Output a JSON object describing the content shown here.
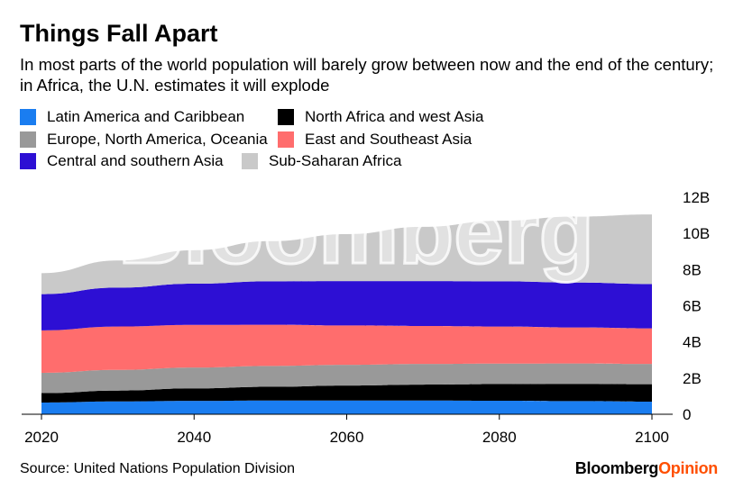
{
  "title": "Things Fall Apart",
  "subtitle": "In most parts of the world population will barely grow between now and the end of the century; in Africa, the U.N. estimates it will explode",
  "source": "Source: United Nations Population Division",
  "brand": {
    "part1": "Bloomberg",
    "part2": "Opinion",
    "accent": "#ff4f00"
  },
  "watermark": "Bloomberg",
  "chart_data": {
    "type": "area",
    "stacked": true,
    "x": [
      2020,
      2030,
      2040,
      2050,
      2060,
      2070,
      2080,
      2090,
      2100
    ],
    "xlim": [
      2020,
      2100
    ],
    "ylim": [
      0,
      12
    ],
    "x_ticks": [
      "2020",
      "2040",
      "2060",
      "2080",
      "2100"
    ],
    "y_ticks": [
      "0",
      "2B",
      "4B",
      "6B",
      "8B",
      "10B",
      "12B"
    ],
    "y_tick_values": [
      0,
      2,
      4,
      6,
      8,
      10,
      12
    ],
    "legend_position": "top-left",
    "series": [
      {
        "name": "Latin America and Caribbean",
        "color": "#1a7df0",
        "values": [
          0.65,
          0.71,
          0.74,
          0.76,
          0.76,
          0.76,
          0.75,
          0.73,
          0.7
        ]
      },
      {
        "name": "North Africa and west Asia",
        "color": "#000000",
        "values": [
          0.52,
          0.6,
          0.69,
          0.76,
          0.83,
          0.88,
          0.92,
          0.95,
          0.96
        ]
      },
      {
        "name": "Europe, North America, Oceania",
        "color": "#999999",
        "values": [
          1.12,
          1.14,
          1.15,
          1.15,
          1.14,
          1.14,
          1.13,
          1.13,
          1.12
        ]
      },
      {
        "name": "East and Southeast Asia",
        "color": "#ff6d6d",
        "values": [
          2.35,
          2.4,
          2.36,
          2.28,
          2.18,
          2.1,
          2.05,
          1.99,
          1.97
        ]
      },
      {
        "name": "Central and southern Asia",
        "color": "#2d0fd4",
        "values": [
          2.0,
          2.15,
          2.28,
          2.4,
          2.45,
          2.48,
          2.5,
          2.48,
          2.45
        ]
      },
      {
        "name": "Sub-Saharan Africa",
        "color": "#c9c9c9",
        "values": [
          1.16,
          1.5,
          1.85,
          2.22,
          2.6,
          3.0,
          3.35,
          3.65,
          3.85
        ]
      }
    ]
  }
}
